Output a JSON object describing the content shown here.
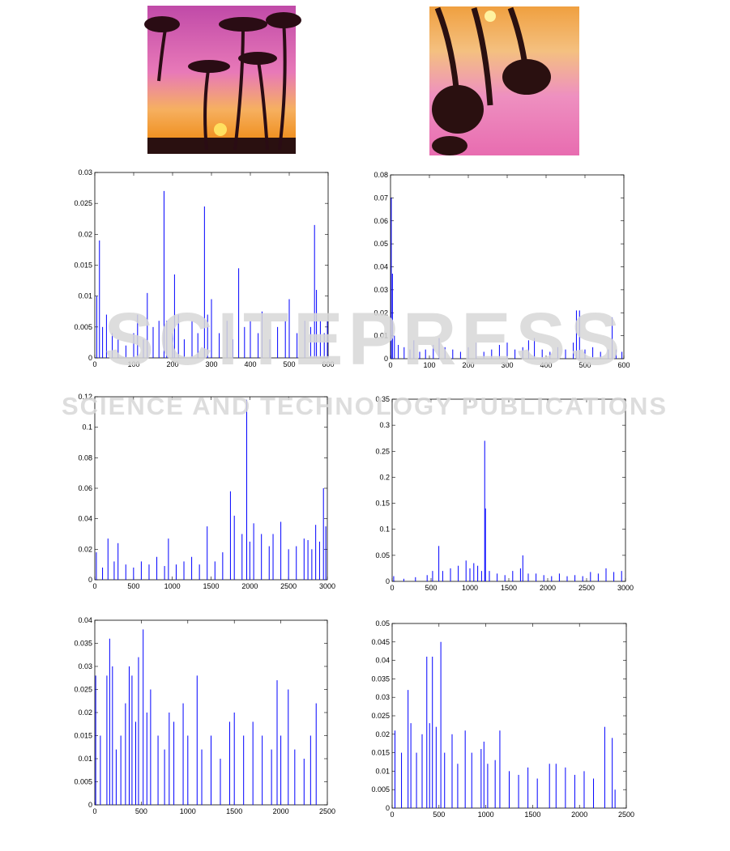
{
  "watermark": {
    "title": "SCITEPRESS",
    "subtitle": "SCIENCE AND TECHNOLOGY PUBLICATIONS"
  },
  "chart_data": [
    {
      "type": "stem",
      "color": "#0000ff",
      "x": [
        5,
        12,
        20,
        30,
        45,
        60,
        80,
        100,
        110,
        125,
        135,
        150,
        165,
        178,
        185,
        200,
        205,
        215,
        230,
        250,
        265,
        282,
        290,
        300,
        320,
        340,
        355,
        370,
        385,
        400,
        420,
        430,
        450,
        470,
        490,
        500,
        520,
        540,
        555,
        565,
        570,
        580,
        590,
        598
      ],
      "values": [
        0.01,
        0.019,
        0.005,
        0.007,
        0.004,
        0.003,
        0.002,
        0.004,
        0.007,
        0.003,
        0.0105,
        0.005,
        0.006,
        0.027,
        0.006,
        0.004,
        0.0135,
        0.007,
        0.003,
        0.006,
        0.004,
        0.0245,
        0.007,
        0.0095,
        0.004,
        0.006,
        0.003,
        0.0145,
        0.005,
        0.006,
        0.004,
        0.0075,
        0.003,
        0.005,
        0.006,
        0.0095,
        0.004,
        0.006,
        0.005,
        0.0215,
        0.011,
        0.006,
        0.004,
        0.006
      ],
      "xlim": [
        0,
        600
      ],
      "xticks": [
        0,
        100,
        200,
        300,
        400,
        500,
        600
      ],
      "ylim": [
        0,
        0.03
      ],
      "yticks": [
        0,
        0.005,
        0.01,
        0.015,
        0.02,
        0.025,
        0.03
      ]
    },
    {
      "type": "stem",
      "color": "#0000ff",
      "x": [
        2,
        5,
        10,
        20,
        35,
        50,
        60,
        75,
        90,
        110,
        125,
        140,
        160,
        180,
        200,
        220,
        240,
        260,
        280,
        300,
        320,
        340,
        355,
        370,
        390,
        410,
        430,
        450,
        470,
        478,
        486,
        500,
        520,
        540,
        560,
        570,
        580,
        595
      ],
      "values": [
        0.07,
        0.037,
        0.01,
        0.006,
        0.005,
        0.004,
        0.008,
        0.003,
        0.004,
        0.006,
        0.009,
        0.005,
        0.004,
        0.003,
        0.005,
        0.007,
        0.003,
        0.004,
        0.006,
        0.007,
        0.004,
        0.005,
        0.008,
        0.009,
        0.004,
        0.003,
        0.005,
        0.004,
        0.007,
        0.021,
        0.021,
        0.004,
        0.005,
        0.003,
        0.004,
        0.018,
        0.004,
        0.003
      ],
      "xlim": [
        0,
        600
      ],
      "xticks": [
        0,
        100,
        200,
        300,
        400,
        500,
        600
      ],
      "ylim": [
        0,
        0.08
      ],
      "yticks": [
        0,
        0.01,
        0.02,
        0.03,
        0.04,
        0.05,
        0.06,
        0.07,
        0.08
      ]
    },
    {
      "type": "stem",
      "color": "#0000ff",
      "x": [
        20,
        100,
        170,
        250,
        300,
        400,
        500,
        600,
        700,
        800,
        900,
        950,
        1050,
        1150,
        1250,
        1350,
        1450,
        1550,
        1650,
        1750,
        1800,
        1900,
        1960,
        2000,
        2050,
        2150,
        2250,
        2300,
        2400,
        2500,
        2600,
        2700,
        2750,
        2800,
        2850,
        2900,
        2950,
        2980
      ],
      "values": [
        0.018,
        0.008,
        0.027,
        0.012,
        0.024,
        0.01,
        0.008,
        0.012,
        0.01,
        0.015,
        0.009,
        0.027,
        0.01,
        0.012,
        0.015,
        0.01,
        0.035,
        0.012,
        0.018,
        0.058,
        0.042,
        0.03,
        0.118,
        0.025,
        0.037,
        0.03,
        0.022,
        0.03,
        0.038,
        0.02,
        0.022,
        0.027,
        0.026,
        0.02,
        0.036,
        0.025,
        0.06,
        0.035
      ],
      "xlim": [
        0,
        3000
      ],
      "xticks": [
        0,
        500,
        1000,
        1500,
        2000,
        2500,
        3000
      ],
      "ylim": [
        0,
        0.12
      ],
      "yticks": [
        0,
        0.02,
        0.04,
        0.06,
        0.08,
        0.1,
        0.12
      ]
    },
    {
      "type": "stem",
      "color": "#0000ff",
      "x": [
        20,
        150,
        300,
        450,
        520,
        600,
        650,
        750,
        850,
        950,
        1000,
        1050,
        1100,
        1150,
        1190,
        1200,
        1250,
        1350,
        1450,
        1550,
        1650,
        1680,
        1750,
        1850,
        1950,
        2050,
        2150,
        2250,
        2350,
        2450,
        2550,
        2650,
        2750,
        2850,
        2950
      ],
      "values": [
        0.01,
        0.005,
        0.008,
        0.012,
        0.02,
        0.068,
        0.02,
        0.025,
        0.03,
        0.04,
        0.025,
        0.035,
        0.03,
        0.02,
        0.27,
        0.14,
        0.02,
        0.015,
        0.012,
        0.02,
        0.025,
        0.05,
        0.015,
        0.015,
        0.012,
        0.01,
        0.015,
        0.01,
        0.012,
        0.01,
        0.018,
        0.015,
        0.025,
        0.018,
        0.02
      ],
      "xlim": [
        0,
        3000
      ],
      "xticks": [
        0,
        500,
        1000,
        1500,
        2000,
        2500,
        3000
      ],
      "ylim": [
        0,
        0.35
      ],
      "yticks": [
        0,
        0.05,
        0.1,
        0.15,
        0.2,
        0.25,
        0.3,
        0.35
      ]
    },
    {
      "type": "stem",
      "color": "#0000ff",
      "x": [
        10,
        60,
        130,
        160,
        190,
        230,
        280,
        330,
        370,
        400,
        440,
        470,
        520,
        560,
        600,
        680,
        750,
        800,
        850,
        950,
        1000,
        1100,
        1150,
        1250,
        1350,
        1450,
        1500,
        1600,
        1700,
        1800,
        1900,
        1960,
        2000,
        2080,
        2150,
        2250,
        2320,
        2380
      ],
      "values": [
        0.028,
        0.015,
        0.028,
        0.036,
        0.03,
        0.012,
        0.015,
        0.022,
        0.03,
        0.028,
        0.018,
        0.032,
        0.038,
        0.02,
        0.025,
        0.015,
        0.012,
        0.02,
        0.018,
        0.022,
        0.015,
        0.028,
        0.012,
        0.015,
        0.01,
        0.018,
        0.02,
        0.015,
        0.018,
        0.015,
        0.012,
        0.027,
        0.015,
        0.025,
        0.012,
        0.01,
        0.015,
        0.022
      ],
      "xlim": [
        0,
        2500
      ],
      "xticks": [
        0,
        500,
        1000,
        1500,
        2000,
        2500
      ],
      "ylim": [
        0,
        0.04
      ],
      "yticks": [
        0,
        0.005,
        0.01,
        0.015,
        0.02,
        0.025,
        0.03,
        0.035,
        0.04
      ]
    },
    {
      "type": "stem",
      "color": "#0000ff",
      "x": [
        30,
        100,
        170,
        200,
        260,
        320,
        370,
        400,
        430,
        470,
        520,
        560,
        640,
        700,
        780,
        850,
        950,
        980,
        1020,
        1100,
        1150,
        1250,
        1350,
        1450,
        1550,
        1680,
        1750,
        1850,
        1950,
        2050,
        2150,
        2270,
        2350,
        2380
      ],
      "values": [
        0.021,
        0.015,
        0.032,
        0.023,
        0.015,
        0.02,
        0.041,
        0.023,
        0.041,
        0.022,
        0.045,
        0.015,
        0.02,
        0.012,
        0.021,
        0.015,
        0.016,
        0.018,
        0.012,
        0.013,
        0.021,
        0.01,
        0.009,
        0.011,
        0.008,
        0.012,
        0.012,
        0.011,
        0.009,
        0.01,
        0.008,
        0.022,
        0.019,
        0.005
      ],
      "xlim": [
        0,
        2500
      ],
      "xticks": [
        0,
        500,
        1000,
        1500,
        2000,
        2500
      ],
      "ylim": [
        0,
        0.05
      ],
      "yticks": [
        0,
        0.005,
        0.01,
        0.015,
        0.02,
        0.025,
        0.03,
        0.035,
        0.04,
        0.045,
        0.05
      ]
    }
  ]
}
